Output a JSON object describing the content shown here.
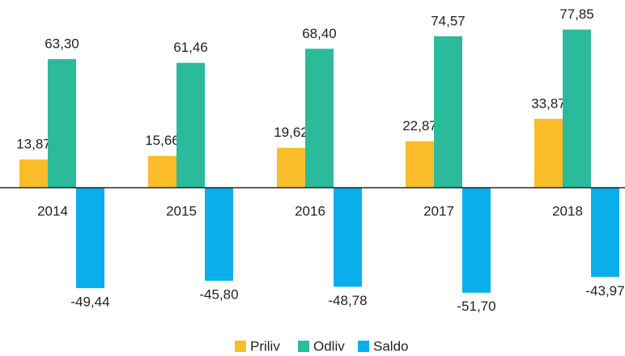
{
  "chart_data": {
    "type": "bar",
    "categories": [
      "2014",
      "2015",
      "2016",
      "2017",
      "2018"
    ],
    "series": [
      {
        "name": "Priliv",
        "color": "#fbbc2a",
        "values": [
          13.87,
          15.66,
          19.62,
          22.87,
          33.87
        ],
        "value_labels": [
          "13,87",
          "15,66",
          "19,62",
          "22,87",
          "33,87"
        ]
      },
      {
        "name": "Odliv",
        "color": "#2bbb9a",
        "values": [
          63.3,
          61.46,
          68.4,
          74.57,
          77.85
        ],
        "value_labels": [
          "63,30",
          "61,46",
          "68,40",
          "74,57",
          "77,85"
        ]
      },
      {
        "name": "Saldo",
        "color": "#09aeeb",
        "values": [
          -49.44,
          -45.8,
          -48.78,
          -51.7,
          -43.97
        ],
        "value_labels": [
          "-49,44",
          "-45,80",
          "-48,78",
          "-51,70",
          "-43,97"
        ]
      }
    ],
    "ylim": [
      -60,
      85
    ],
    "legend": "bottom"
  }
}
